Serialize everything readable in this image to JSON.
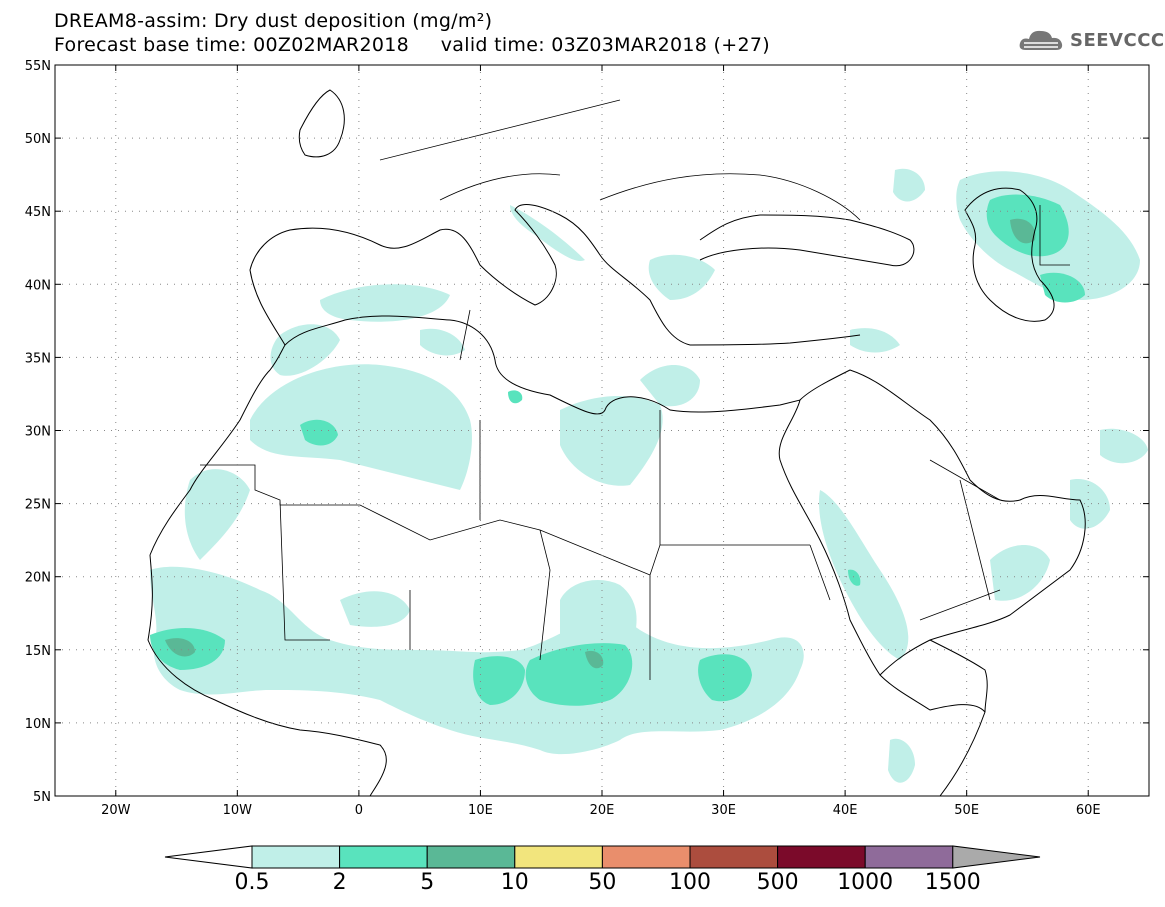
{
  "title_line1": "DREAM8-assim: Dry dust deposition (mg/m²)",
  "title_line2": "Forecast base time: 00Z02MAR2018     valid time: 03Z03MAR2018 (+27)",
  "logo": {
    "text": "SEEVCCC",
    "icon": "cloud-icon"
  },
  "map": {
    "lon_range": [
      -25,
      65
    ],
    "lat_range": [
      5,
      55
    ],
    "lon_ticks": [
      {
        "value": -20,
        "label": "20W"
      },
      {
        "value": -10,
        "label": "10W"
      },
      {
        "value": 0,
        "label": "0"
      },
      {
        "value": 10,
        "label": "10E"
      },
      {
        "value": 20,
        "label": "20E"
      },
      {
        "value": 30,
        "label": "30E"
      },
      {
        "value": 40,
        "label": "40E"
      },
      {
        "value": 50,
        "label": "50E"
      },
      {
        "value": 60,
        "label": "60E"
      }
    ],
    "lat_ticks": [
      {
        "value": 5,
        "label": "5N"
      },
      {
        "value": 10,
        "label": "10N"
      },
      {
        "value": 15,
        "label": "15N"
      },
      {
        "value": 20,
        "label": "20N"
      },
      {
        "value": 25,
        "label": "25N"
      },
      {
        "value": 30,
        "label": "30N"
      },
      {
        "value": 35,
        "label": "35N"
      },
      {
        "value": 40,
        "label": "40N"
      },
      {
        "value": 45,
        "label": "45N"
      },
      {
        "value": 50,
        "label": "50N"
      },
      {
        "value": 55,
        "label": "55N"
      }
    ],
    "grid": "dotted"
  },
  "colorbar": {
    "colors": [
      "#c0efe8",
      "#59e3bd",
      "#5ab896",
      "#f2e57d",
      "#e98e6c",
      "#ac4d3e",
      "#7b0a2a",
      "#8f6b9a"
    ],
    "under_color": "#ffffff",
    "over_color": "#aaaaaa",
    "labels": [
      "0.5",
      "2",
      "5",
      "10",
      "50",
      "100",
      "500",
      "1000",
      "1500"
    ]
  }
}
